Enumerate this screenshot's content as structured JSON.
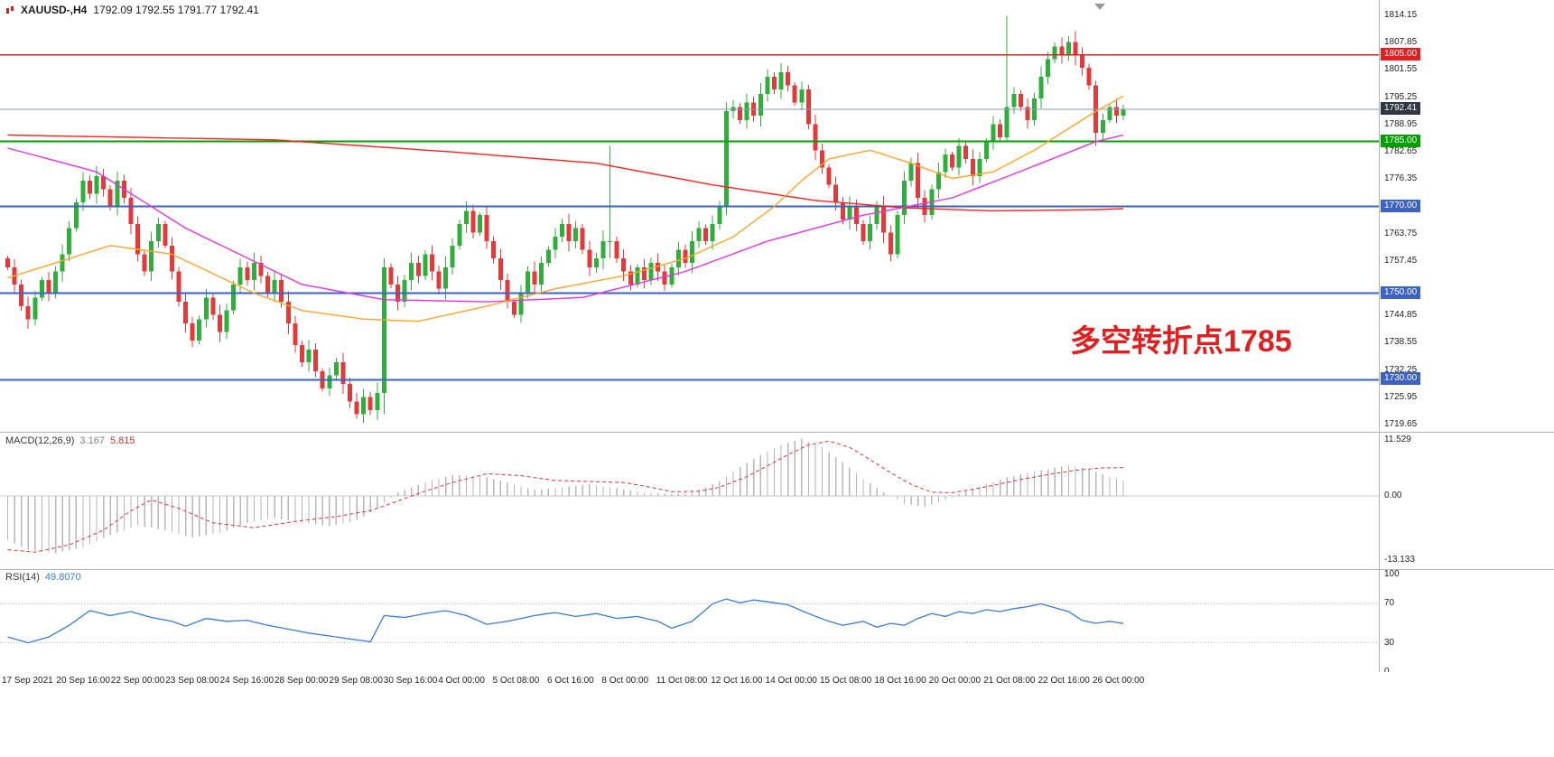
{
  "header": {
    "symbol": "XAUUSD-,H4",
    "ohlc": "1792.09 1792.55 1791.77 1792.41"
  },
  "annotation": {
    "text": "多空转折点1785",
    "color": "#e02020"
  },
  "colors": {
    "up": "#2fae3c",
    "down": "#e23a3a",
    "macd_hist": "#b6b6be",
    "macd_signal": "#e03030",
    "rsi": "#3a7bd5",
    "zero_line": "#c8c8c8",
    "level_line_gray": "#c0c0c0",
    "current_line": "#8a9ab5"
  },
  "price_axis": {
    "ticks": [
      {
        "text": "1814.15",
        "value": 1814.15
      },
      {
        "text": "1807.85",
        "value": 1807.85
      },
      {
        "text": "1801.55",
        "value": 1801.55
      },
      {
        "text": "1795.25",
        "value": 1795.25
      },
      {
        "text": "1788.95",
        "value": 1788.95
      },
      {
        "text": "1782.65",
        "value": 1782.65
      },
      {
        "text": "1776.35",
        "value": 1776.35
      },
      {
        "text": "1763.75",
        "value": 1763.75
      },
      {
        "text": "1757.45",
        "value": 1757.45
      },
      {
        "text": "1744.85",
        "value": 1744.85
      },
      {
        "text": "1738.55",
        "value": 1738.55
      },
      {
        "text": "1732.25",
        "value": 1732.25
      },
      {
        "text": "1725.95",
        "value": 1725.95
      },
      {
        "text": "1719.65",
        "value": 1719.65
      }
    ],
    "tags": [
      {
        "text": "1805.00",
        "value": 1805.0,
        "bg": "#e02020",
        "interactable": true
      },
      {
        "text": "1792.41",
        "value": 1792.41,
        "bg": "#2e3742",
        "interactable": false
      },
      {
        "text": "1785.00",
        "value": 1785.0,
        "bg": "#00a000",
        "interactable": true
      },
      {
        "text": "1770.00",
        "value": 1770.0,
        "bg": "#3b62c4",
        "interactable": true
      },
      {
        "text": "1750.00",
        "value": 1750.0,
        "bg": "#3b62c4",
        "interactable": true
      },
      {
        "text": "1730.00",
        "value": 1730.0,
        "bg": "#3b62c4",
        "interactable": true
      }
    ]
  },
  "levels": {
    "lines": [
      {
        "value": 1805.0,
        "color": "#e02020",
        "width": 1.6
      },
      {
        "value": 1785.0,
        "color": "#00a000",
        "width": 2
      },
      {
        "value": 1770.0,
        "color": "#3b62c4",
        "width": 2
      },
      {
        "value": 1750.0,
        "color": "#3b62c4",
        "width": 2
      },
      {
        "value": 1730.0,
        "color": "#3b62c4",
        "width": 2
      }
    ],
    "current": {
      "value": 1792.41,
      "color": "#8a9ab5",
      "width": 1
    }
  },
  "indicators": {
    "macd": {
      "label": "MACD(12,26,9)",
      "main_value": "3.167",
      "signal_value": "5.815",
      "ticks": [
        {
          "text": "11.529",
          "value": 11.529
        },
        {
          "text": "0.00",
          "value": 0
        },
        {
          "text": "-13.133",
          "value": -13.133
        }
      ]
    },
    "rsi": {
      "label": "RSI(14)",
      "value": "49.8070",
      "ticks": [
        {
          "text": "100",
          "value": 100
        },
        {
          "text": "70",
          "value": 70
        },
        {
          "text": "30",
          "value": 30
        },
        {
          "text": "0",
          "value": 0
        }
      ]
    }
  },
  "time_axis": {
    "labels": [
      "17 Sep 2021",
      "20 Sep 16:00",
      "22 Sep 00:00",
      "23 Sep 08:00",
      "24 Sep 16:00",
      "28 Sep 00:00",
      "29 Sep 08:00",
      "30 Sep 16:00",
      "4 Oct 00:00",
      "5 Oct 08:00",
      "6 Oct 16:00",
      "8 Oct 00:00",
      "11 Oct 08:00",
      "12 Oct 16:00",
      "14 Oct 00:00",
      "15 Oct 08:00",
      "18 Oct 16:00",
      "20 Oct 00:00",
      "21 Oct 08:00",
      "22 Oct 16:00",
      "26 Oct 00:00"
    ]
  },
  "chart_data": {
    "type": "candlestick",
    "title": "XAUUSD- H4 chart with MACD(12,26,9) and RSI(14)",
    "symbol": "XAUUSD-",
    "timeframe": "H4",
    "price_range": [
      1719.65,
      1814.15
    ],
    "bar_count": 164,
    "closes": [
      1756,
      1752,
      1747,
      1744,
      1749,
      1753,
      1750,
      1755,
      1759,
      1765,
      1771,
      1776,
      1773,
      1777,
      1774,
      1770,
      1776,
      1772,
      1766,
      1759,
      1755,
      1762,
      1766,
      1761,
      1755,
      1748,
      1743,
      1739,
      1744,
      1749,
      1745,
      1741,
      1746,
      1752,
      1756,
      1753,
      1757,
      1754,
      1750,
      1753,
      1748,
      1743,
      1738,
      1734,
      1737,
      1732,
      1728,
      1731,
      1734,
      1729,
      1725,
      1722,
      1726,
      1723,
      1727,
      1756,
      1752,
      1748,
      1753,
      1757,
      1754,
      1759,
      1755,
      1751,
      1756,
      1761,
      1766,
      1769,
      1764,
      1768,
      1762,
      1758,
      1753,
      1748,
      1745,
      1750,
      1755,
      1752,
      1757,
      1760,
      1763,
      1766,
      1762,
      1765,
      1760,
      1756,
      1758,
      1762,
      1762,
      1758,
      1755,
      1752,
      1756,
      1753,
      1757,
      1755,
      1752,
      1756,
      1760,
      1757,
      1762,
      1765,
      1762,
      1766,
      1770,
      1792,
      1793,
      1790,
      1794,
      1791,
      1796,
      1800,
      1797,
      1801,
      1798,
      1794,
      1797,
      1789,
      1783,
      1779,
      1775,
      1771,
      1767,
      1770,
      1766,
      1762,
      1766,
      1770,
      1764,
      1759,
      1768,
      1776,
      1780,
      1772,
      1768,
      1774,
      1778,
      1782,
      1779,
      1784,
      1781,
      1777,
      1781,
      1785,
      1789,
      1786,
      1793,
      1796,
      1793,
      1790,
      1795,
      1800,
      1804,
      1807,
      1805,
      1808,
      1805,
      1802,
      1798,
      1787,
      1790,
      1793,
      1791,
      1792.41
    ],
    "candle_overrides": {
      "51": [
        1725,
        1727,
        1721,
        1722
      ],
      "55": [
        1727,
        1758,
        1722,
        1756
      ],
      "88": [
        1762,
        1784,
        1758,
        1762
      ],
      "105": [
        1770,
        1794,
        1768,
        1792
      ],
      "146": [
        1786,
        1814,
        1785,
        1793
      ],
      "159": [
        1798,
        1799,
        1784,
        1787
      ]
    },
    "moving_averages": [
      {
        "name": "ma-slow-red",
        "color": "#ff2020",
        "points": [
          [
            0,
            1786.5
          ],
          [
            39,
            1785.4
          ],
          [
            65,
            1782.6
          ],
          [
            86,
            1780.0
          ],
          [
            103,
            1775.0
          ],
          [
            118,
            1771.4
          ],
          [
            131,
            1769.7
          ],
          [
            144,
            1769.0
          ],
          [
            159,
            1769.3
          ],
          [
            163,
            1769.5
          ]
        ]
      },
      {
        "name": "ma-mid-magenta",
        "color": "#e632e6",
        "points": [
          [
            0,
            1783.5
          ],
          [
            13,
            1778
          ],
          [
            26,
            1765
          ],
          [
            43,
            1752
          ],
          [
            55,
            1748.5
          ],
          [
            70,
            1748
          ],
          [
            84,
            1749
          ],
          [
            99,
            1755
          ],
          [
            111,
            1762
          ],
          [
            125,
            1768
          ],
          [
            138,
            1772
          ],
          [
            151,
            1780
          ],
          [
            159,
            1785
          ],
          [
            163,
            1786.5
          ]
        ]
      },
      {
        "name": "ma-fast-orange",
        "color": "#ffa426",
        "points": [
          [
            0,
            1753.5
          ],
          [
            15,
            1761
          ],
          [
            24,
            1759
          ],
          [
            36,
            1750
          ],
          [
            43,
            1746
          ],
          [
            52,
            1744
          ],
          [
            60,
            1743.5
          ],
          [
            70,
            1747
          ],
          [
            80,
            1751
          ],
          [
            90,
            1754
          ],
          [
            99,
            1758
          ],
          [
            106,
            1763
          ],
          [
            112,
            1770
          ],
          [
            116,
            1776
          ],
          [
            120,
            1781
          ],
          [
            126,
            1783
          ],
          [
            132,
            1780
          ],
          [
            138,
            1776.5
          ],
          [
            144,
            1778
          ],
          [
            150,
            1783
          ],
          [
            155,
            1788
          ],
          [
            159,
            1792
          ],
          [
            163,
            1795.5
          ]
        ]
      }
    ],
    "macd": {
      "range": [
        -13.133,
        11.529
      ],
      "histogram_points": [
        [
          0,
          -9
        ],
        [
          3,
          -11
        ],
        [
          7,
          -11.7
        ],
        [
          11,
          -10.5
        ],
        [
          15,
          -8
        ],
        [
          19,
          -6
        ],
        [
          23,
          -7
        ],
        [
          27,
          -8.5
        ],
        [
          31,
          -7.5
        ],
        [
          35,
          -5.5
        ],
        [
          39,
          -4.5
        ],
        [
          43,
          -5.5
        ],
        [
          47,
          -6.2
        ],
        [
          51,
          -5
        ],
        [
          54,
          -2.5
        ],
        [
          57,
          0.8
        ],
        [
          61,
          2.8
        ],
        [
          65,
          4.3
        ],
        [
          69,
          4.2
        ],
        [
          73,
          2.8
        ],
        [
          77,
          1.2
        ],
        [
          81,
          1.8
        ],
        [
          85,
          2.4
        ],
        [
          89,
          1.6
        ],
        [
          93,
          0.7
        ],
        [
          97,
          0.4
        ],
        [
          101,
          1.2
        ],
        [
          104,
          3
        ],
        [
          107,
          6
        ],
        [
          110,
          8.5
        ],
        [
          113,
          10.5
        ],
        [
          116,
          11.8
        ],
        [
          119,
          10
        ],
        [
          122,
          7
        ],
        [
          125,
          3.5
        ],
        [
          128,
          0.8
        ],
        [
          131,
          -1.5
        ],
        [
          134,
          -2.2
        ],
        [
          137,
          -0.8
        ],
        [
          140,
          1
        ],
        [
          143,
          2.5
        ],
        [
          146,
          3.8
        ],
        [
          149,
          4.8
        ],
        [
          152,
          5.5
        ],
        [
          155,
          6.3
        ],
        [
          157,
          5.8
        ],
        [
          160,
          4.5
        ],
        [
          163,
          3.167
        ]
      ],
      "signal_points": [
        [
          0,
          -11
        ],
        [
          4,
          -11.5
        ],
        [
          9,
          -10
        ],
        [
          14,
          -7
        ],
        [
          18,
          -3
        ],
        [
          21,
          -0.8
        ],
        [
          25,
          -2.5
        ],
        [
          30,
          -5.5
        ],
        [
          36,
          -6.5
        ],
        [
          42,
          -5.2
        ],
        [
          48,
          -4.2
        ],
        [
          53,
          -3
        ],
        [
          57,
          -1
        ],
        [
          61,
          1
        ],
        [
          65,
          2.8
        ],
        [
          70,
          4.6
        ],
        [
          75,
          4.2
        ],
        [
          80,
          3.2
        ],
        [
          85,
          3
        ],
        [
          90,
          2.8
        ],
        [
          94,
          1.8
        ],
        [
          97,
          0.9
        ],
        [
          101,
          1
        ],
        [
          104,
          1.8
        ],
        [
          108,
          4
        ],
        [
          111,
          6.2
        ],
        [
          114,
          8.5
        ],
        [
          117,
          10.5
        ],
        [
          120,
          11.3
        ],
        [
          123,
          10
        ],
        [
          126,
          7.5
        ],
        [
          129,
          4.8
        ],
        [
          132,
          2.4
        ],
        [
          135,
          0.8
        ],
        [
          138,
          0.7
        ],
        [
          141,
          1.4
        ],
        [
          144,
          2.2
        ],
        [
          148,
          3.4
        ],
        [
          152,
          4.4
        ],
        [
          156,
          5.3
        ],
        [
          160,
          5.8
        ],
        [
          163,
          5.815
        ]
      ]
    },
    "rsi": {
      "range": [
        0,
        100
      ],
      "levels": [
        70,
        30
      ],
      "points": [
        [
          0,
          36
        ],
        [
          3,
          30
        ],
        [
          6,
          36
        ],
        [
          9,
          48
        ],
        [
          12,
          63
        ],
        [
          15,
          58
        ],
        [
          18,
          62
        ],
        [
          21,
          56
        ],
        [
          24,
          52
        ],
        [
          26,
          47
        ],
        [
          29,
          55
        ],
        [
          32,
          52
        ],
        [
          35,
          53
        ],
        [
          38,
          48
        ],
        [
          41,
          44
        ],
        [
          44,
          40
        ],
        [
          47,
          37
        ],
        [
          50,
          34
        ],
        [
          53,
          31
        ],
        [
          55,
          58
        ],
        [
          58,
          56
        ],
        [
          61,
          60
        ],
        [
          64,
          63
        ],
        [
          67,
          58
        ],
        [
          70,
          49
        ],
        [
          73,
          52
        ],
        [
          77,
          58
        ],
        [
          80,
          61
        ],
        [
          83,
          57
        ],
        [
          86,
          60
        ],
        [
          89,
          55
        ],
        [
          92,
          57
        ],
        [
          95,
          52
        ],
        [
          97,
          45
        ],
        [
          100,
          52
        ],
        [
          103,
          70
        ],
        [
          105,
          75
        ],
        [
          107,
          71
        ],
        [
          109,
          74
        ],
        [
          111,
          72
        ],
        [
          114,
          69
        ],
        [
          117,
          60
        ],
        [
          120,
          52
        ],
        [
          122,
          48
        ],
        [
          125,
          52
        ],
        [
          127,
          46
        ],
        [
          129,
          50
        ],
        [
          131,
          48
        ],
        [
          133,
          55
        ],
        [
          135,
          60
        ],
        [
          137,
          57
        ],
        [
          139,
          62
        ],
        [
          141,
          60
        ],
        [
          143,
          64
        ],
        [
          145,
          62
        ],
        [
          147,
          65
        ],
        [
          149,
          67
        ],
        [
          151,
          70
        ],
        [
          153,
          66
        ],
        [
          155,
          62
        ],
        [
          157,
          53
        ],
        [
          159,
          50
        ],
        [
          161,
          52
        ],
        [
          163,
          49.8
        ]
      ]
    }
  }
}
